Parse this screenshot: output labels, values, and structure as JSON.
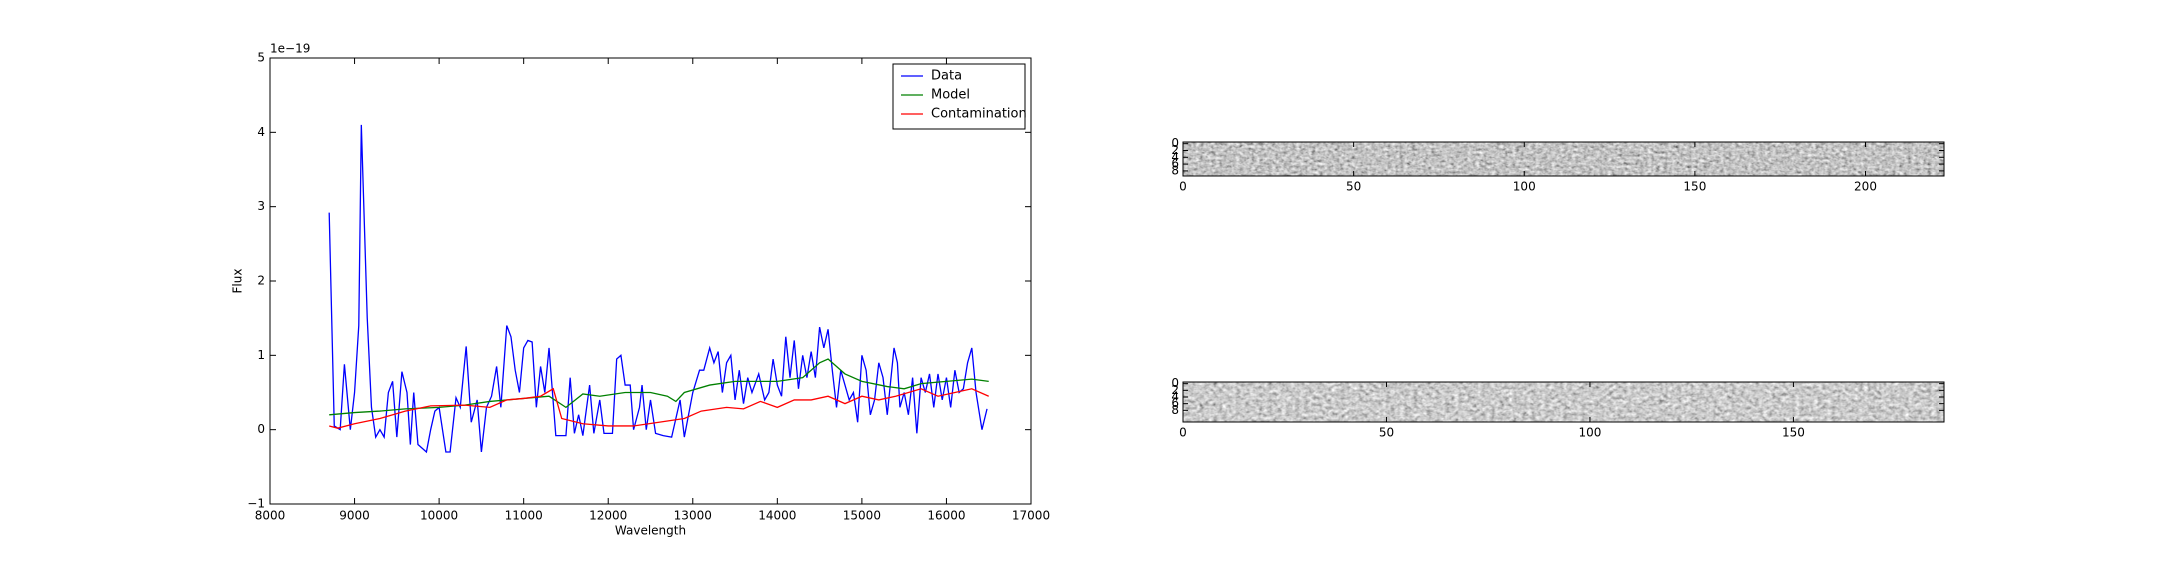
{
  "chart_data": [
    {
      "type": "line",
      "xlabel": "Wavelength",
      "ylabel": "Flux",
      "offset_label": "1e−19",
      "xlim": [
        8000,
        17000
      ],
      "xticks": [
        8000,
        9000,
        10000,
        11000,
        12000,
        13000,
        14000,
        15000,
        16000,
        17000
      ],
      "ylim": [
        -1,
        5
      ],
      "yticks": [
        {
          "value": -1,
          "label": "−1"
        },
        0,
        1,
        2,
        3,
        4,
        5
      ],
      "legend": "upper right",
      "grid": false,
      "series": [
        {
          "name": "Data",
          "color": "#0000ff",
          "x": [
            8700,
            8760,
            8830,
            8880,
            8950,
            9000,
            9050,
            9080,
            9150,
            9200,
            9250,
            9300,
            9350,
            9400,
            9450,
            9500,
            9560,
            9620,
            9660,
            9700,
            9750,
            9800,
            9850,
            9900,
            9950,
            10000,
            10080,
            10130,
            10200,
            10250,
            10320,
            10380,
            10450,
            10500,
            10560,
            10620,
            10680,
            10730,
            10800,
            10850,
            10900,
            10950,
            11000,
            11050,
            11100,
            11150,
            11200,
            11250,
            11300,
            11380,
            11450,
            11500,
            11550,
            11600,
            11650,
            11700,
            11780,
            11830,
            11900,
            11950,
            12000,
            12050,
            12100,
            12150,
            12200,
            12260,
            12300,
            12370,
            12400,
            12450,
            12500,
            12560,
            12650,
            12750,
            12800,
            12850,
            12900,
            13000,
            13080,
            13130,
            13200,
            13250,
            13300,
            13350,
            13400,
            13450,
            13500,
            13550,
            13600,
            13650,
            13700,
            13780,
            13850,
            13900,
            13950,
            14000,
            14050,
            14100,
            14150,
            14200,
            14250,
            14300,
            14350,
            14400,
            14450,
            14500,
            14550,
            14600,
            14650,
            14700,
            14750,
            14800,
            14850,
            14900,
            14950,
            15000,
            15050,
            15100,
            15150,
            15200,
            15250,
            15300,
            15380,
            15420,
            15450,
            15500,
            15550,
            15600,
            15650,
            15700,
            15750,
            15800,
            15850,
            15900,
            15950,
            16000,
            16050,
            16100,
            16150,
            16200,
            16250,
            16300,
            16350,
            16420,
            16480
          ],
          "values": [
            2.92,
            0.05,
            0.0,
            0.88,
            0.0,
            0.5,
            1.4,
            4.1,
            1.5,
            0.3,
            -0.1,
            0.0,
            -0.1,
            0.5,
            0.65,
            -0.1,
            0.78,
            0.5,
            -0.2,
            0.5,
            -0.2,
            -0.25,
            -0.3,
            0.0,
            0.25,
            0.3,
            -0.3,
            -0.3,
            0.43,
            0.3,
            1.12,
            0.1,
            0.4,
            -0.3,
            0.3,
            0.45,
            0.85,
            0.3,
            1.4,
            1.25,
            0.8,
            0.5,
            1.1,
            1.2,
            1.18,
            0.3,
            0.85,
            0.5,
            1.1,
            -0.08,
            -0.08,
            -0.08,
            0.7,
            -0.05,
            0.2,
            -0.08,
            0.6,
            -0.05,
            0.4,
            -0.05,
            -0.05,
            -0.05,
            0.95,
            1.0,
            0.6,
            0.6,
            0.0,
            0.3,
            0.6,
            0.0,
            0.4,
            -0.05,
            -0.08,
            -0.1,
            0.15,
            0.4,
            -0.1,
            0.5,
            0.8,
            0.8,
            1.1,
            0.9,
            1.05,
            0.5,
            0.9,
            1.0,
            0.4,
            0.8,
            0.35,
            0.7,
            0.5,
            0.75,
            0.4,
            0.5,
            0.95,
            0.6,
            0.45,
            1.25,
            0.7,
            1.2,
            0.55,
            1.0,
            0.7,
            1.05,
            0.7,
            1.38,
            1.1,
            1.35,
            0.8,
            0.3,
            0.8,
            0.6,
            0.4,
            0.5,
            0.1,
            1.0,
            0.8,
            0.2,
            0.4,
            0.9,
            0.7,
            0.2,
            1.1,
            0.9,
            0.3,
            0.5,
            0.2,
            0.7,
            -0.05,
            0.7,
            0.5,
            0.75,
            0.3,
            0.75,
            0.4,
            0.7,
            0.3,
            0.8,
            0.5,
            0.55,
            0.9,
            1.1,
            0.5,
            0.0,
            0.28
          ]
        },
        {
          "name": "Model",
          "color": "#008000",
          "x": [
            8700,
            9000,
            9300,
            9600,
            10000,
            10300,
            10600,
            11000,
            11300,
            11500,
            11700,
            11900,
            12200,
            12500,
            12700,
            12800,
            12900,
            13200,
            13500,
            14000,
            14300,
            14500,
            14600,
            14800,
            15000,
            15300,
            15500,
            15700,
            16000,
            16300,
            16500
          ],
          "values": [
            0.2,
            0.23,
            0.25,
            0.28,
            0.3,
            0.33,
            0.38,
            0.42,
            0.45,
            0.3,
            0.48,
            0.45,
            0.5,
            0.5,
            0.45,
            0.38,
            0.5,
            0.6,
            0.65,
            0.65,
            0.7,
            0.9,
            0.95,
            0.75,
            0.65,
            0.58,
            0.55,
            0.62,
            0.65,
            0.68,
            0.65
          ]
        },
        {
          "name": "Contamination",
          "color": "#ff0000",
          "x": [
            8700,
            8800,
            9000,
            9300,
            9600,
            9900,
            10300,
            10600,
            10800,
            11000,
            11200,
            11350,
            11450,
            11700,
            12000,
            12300,
            12600,
            12900,
            13100,
            13400,
            13600,
            13800,
            14000,
            14200,
            14400,
            14600,
            14800,
            15000,
            15200,
            15400,
            15700,
            15900,
            16100,
            16300,
            16500
          ],
          "values": [
            0.05,
            0.02,
            0.08,
            0.15,
            0.25,
            0.32,
            0.33,
            0.3,
            0.4,
            0.42,
            0.45,
            0.55,
            0.15,
            0.08,
            0.05,
            0.05,
            0.1,
            0.15,
            0.25,
            0.3,
            0.28,
            0.38,
            0.3,
            0.4,
            0.4,
            0.45,
            0.35,
            0.45,
            0.4,
            0.45,
            0.55,
            0.45,
            0.5,
            0.55,
            0.45
          ]
        }
      ]
    },
    {
      "type": "image",
      "xlim": [
        0,
        223
      ],
      "xticks": [
        0,
        50,
        100,
        150,
        200
      ],
      "ylim": [
        9.5,
        -0.5
      ],
      "yticks": [
        0,
        2,
        4,
        6,
        8
      ]
    },
    {
      "type": "image",
      "xlim": [
        0,
        187
      ],
      "xticks": [
        0,
        50,
        100,
        150
      ],
      "ylim": [
        11.5,
        -0.5
      ],
      "yticks": [
        0,
        2,
        4,
        6,
        8
      ]
    }
  ]
}
